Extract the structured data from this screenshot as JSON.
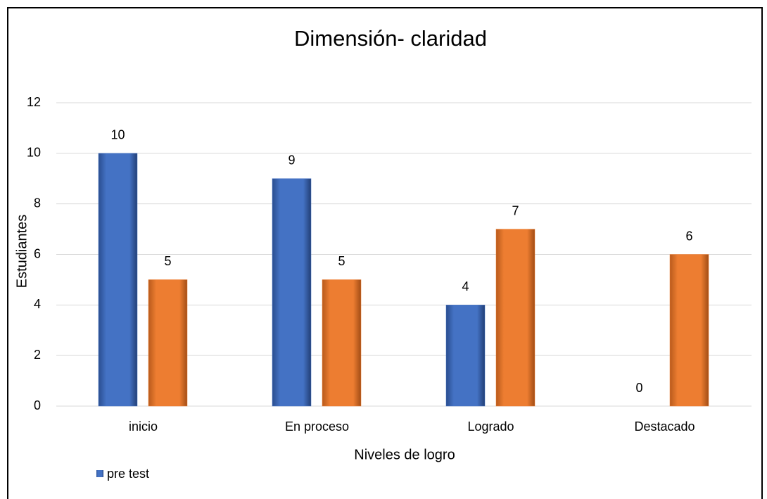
{
  "chart_data": {
    "type": "bar",
    "title": "Dimensión- claridad",
    "x_label": "Niveles de logro",
    "y_label": "Estudiantes",
    "categories": [
      "inicio",
      "En proceso",
      "Logrado",
      "Destacado"
    ],
    "series": [
      {
        "name": "pre test",
        "color": "#4472c4",
        "values": [
          10,
          9,
          4,
          0
        ]
      },
      {
        "color": "#ed7d31",
        "values": [
          5,
          5,
          7,
          6
        ]
      }
    ],
    "ylim": [
      0,
      12
    ],
    "yticks": [
      0,
      2,
      4,
      6,
      8,
      10,
      12
    ],
    "grid": true,
    "legend": "bottom-left"
  }
}
